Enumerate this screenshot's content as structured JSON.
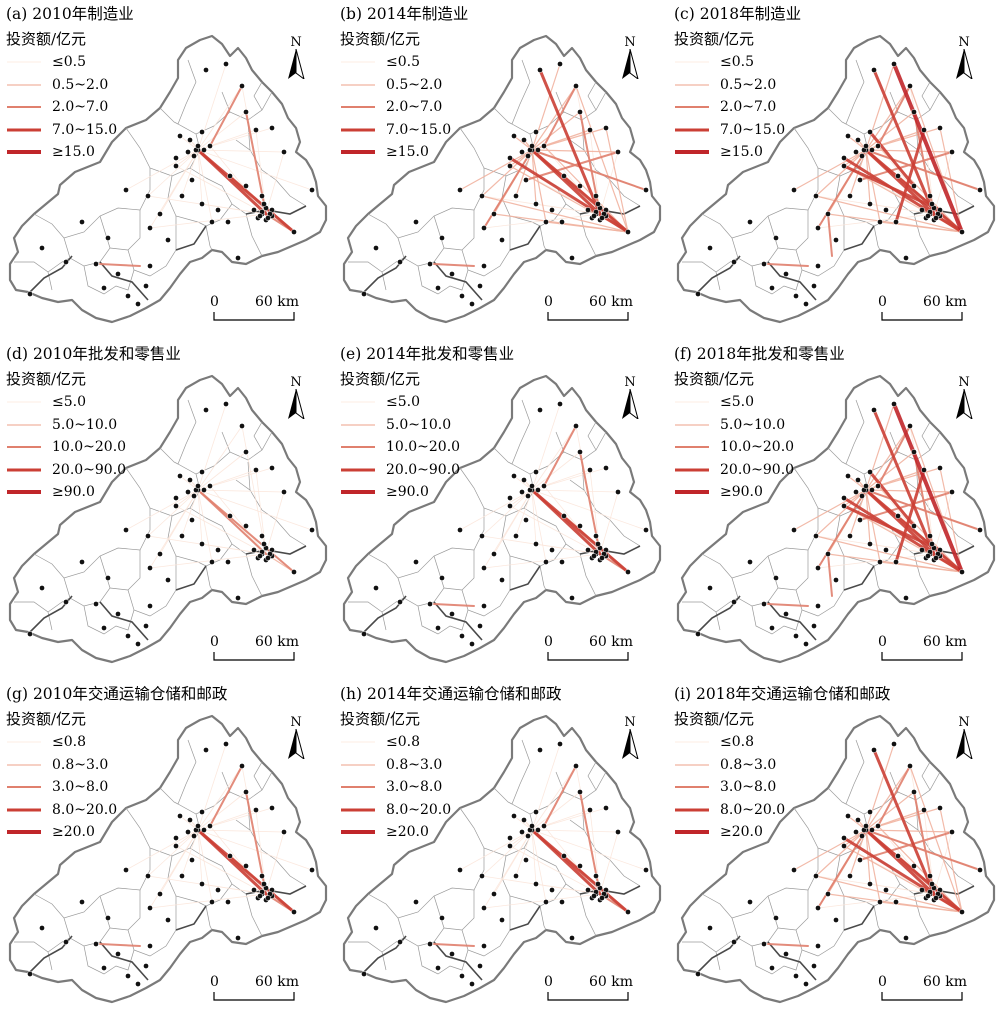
{
  "panels": [
    {
      "title": "(a) 2010年制造业",
      "level": 1,
      "legend": [
        "≤0.5",
        "0.5~2.0",
        "2.0~7.0",
        "7.0~15.0",
        "≥15.0"
      ]
    },
    {
      "title": "(b) 2014年制造业",
      "level": 2,
      "legend": [
        "≤0.5",
        "0.5~2.0",
        "2.0~7.0",
        "7.0~15.0",
        "≥15.0"
      ]
    },
    {
      "title": "(c) 2018年制造业",
      "level": 3,
      "legend": [
        "≤0.5",
        "0.5~2.0",
        "2.0~7.0",
        "7.0~15.0",
        "≥15.0"
      ]
    },
    {
      "title": "(d) 2010年批发和零售业",
      "level": 0,
      "legend": [
        "≤5.0",
        "5.0~10.0",
        "10.0~20.0",
        "20.0~90.0",
        "≥90.0"
      ]
    },
    {
      "title": "(e) 2014年批发和零售业",
      "level": 1,
      "legend": [
        "≤5.0",
        "5.0~10.0",
        "10.0~20.0",
        "20.0~90.0",
        "≥90.0"
      ]
    },
    {
      "title": "(f) 2018年批发和零售业",
      "level": 3,
      "legend": [
        "≤5.0",
        "5.0~10.0",
        "10.0~20.0",
        "20.0~90.0",
        "≥90.0"
      ]
    },
    {
      "title": "(g) 2010年交通运输仓储和邮政",
      "level": 1,
      "legend": [
        "≤0.8",
        "0.8~3.0",
        "3.0~8.0",
        "8.0~20.0",
        "≥20.0"
      ]
    },
    {
      "title": "(h) 2014年交通运输仓储和邮政",
      "level": 1,
      "legend": [
        "≤0.8",
        "0.8~3.0",
        "3.0~8.0",
        "8.0~20.0",
        "≥20.0"
      ]
    },
    {
      "title": "(i) 2018年交通运输仓储和邮政",
      "level": 2,
      "legend": [
        "≤0.8",
        "0.8~3.0",
        "3.0~8.0",
        "8.0~20.0",
        "≥20.0"
      ]
    }
  ],
  "legend_title": "投资额/亿元",
  "north_label": "N",
  "scale_zero": "0",
  "scale_label": "60 km",
  "legend_colors": [
    "#fbe6da",
    "#f1b3a0",
    "#e0806e",
    "#cb3f35",
    "#c0262a"
  ],
  "boundary_color": "#7a7a7a",
  "node_color": "#111111"
}
